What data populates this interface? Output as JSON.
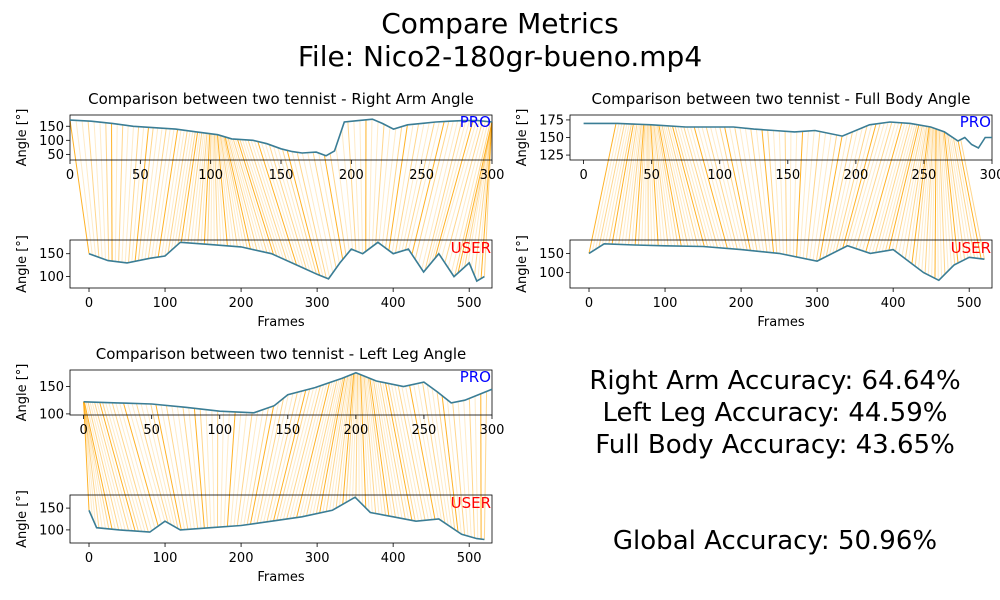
{
  "header": {
    "title_line1": "Compare Metrics",
    "title_line2": "File: Nico2-180gr-bueno.mp4"
  },
  "accuracy": {
    "right_arm": "Right Arm Accuracy: 64.64%",
    "left_leg": "Left Leg Accuracy: 44.59%",
    "full_body": "Full Body Accuracy: 43.65%",
    "global": "Global Accuracy: 50.96%"
  },
  "colors": {
    "series_line": "#3a7d95",
    "connector": "#ffa500",
    "pro_label": "#0000ff",
    "user_label": "#ff0000"
  },
  "chart_data": [
    {
      "type": "line",
      "title": "Comparison between two tennist - Right Arm Angle",
      "xlabel": "Frames",
      "ylabel": "Angle [°]",
      "pro": {
        "label": "PRO",
        "xlim": [
          0,
          300
        ],
        "ylim": [
          30,
          190
        ],
        "yticks": [
          50,
          100,
          150
        ],
        "xticks": [
          0,
          50,
          100,
          150,
          200,
          250,
          300
        ],
        "x": [
          0,
          15,
          30,
          45,
          60,
          75,
          90,
          105,
          115,
          130,
          140,
          150,
          158,
          165,
          175,
          182,
          188,
          195,
          205,
          215,
          222,
          230,
          240,
          250,
          260,
          270,
          280,
          290,
          300
        ],
        "y": [
          172,
          168,
          160,
          150,
          145,
          140,
          130,
          120,
          105,
          100,
          88,
          70,
          60,
          55,
          58,
          45,
          62,
          165,
          170,
          175,
          160,
          140,
          155,
          160,
          165,
          168,
          170,
          170,
          165
        ]
      },
      "user": {
        "label": "USER",
        "xlim": [
          -25,
          530
        ],
        "ylim": [
          75,
          180
        ],
        "yticks": [
          100,
          150
        ],
        "xticks": [
          0,
          100,
          200,
          300,
          400,
          500
        ],
        "x": [
          0,
          25,
          50,
          80,
          100,
          120,
          160,
          200,
          240,
          280,
          300,
          315,
          330,
          345,
          360,
          380,
          400,
          420,
          440,
          460,
          480,
          500,
          510,
          520
        ],
        "y": [
          150,
          135,
          130,
          140,
          145,
          175,
          170,
          165,
          150,
          120,
          105,
          95,
          130,
          160,
          150,
          175,
          150,
          160,
          110,
          150,
          100,
          130,
          90,
          100
        ]
      }
    },
    {
      "type": "line",
      "title": "Comparison between two tennist - Full Body Angle",
      "xlabel": "Frames",
      "ylabel": "Angle [°]",
      "pro": {
        "label": "PRO",
        "xlim": [
          -10,
          300
        ],
        "ylim": [
          118,
          182
        ],
        "yticks": [
          125,
          150,
          175
        ],
        "xticks": [
          0,
          50,
          100,
          150,
          200,
          250,
          300
        ],
        "x": [
          0,
          25,
          50,
          75,
          100,
          110,
          125,
          140,
          155,
          170,
          190,
          210,
          225,
          240,
          255,
          265,
          275,
          280,
          285,
          290,
          295,
          300
        ],
        "y": [
          170,
          170,
          168,
          165,
          165,
          165,
          162,
          160,
          158,
          160,
          152,
          168,
          172,
          170,
          165,
          158,
          145,
          150,
          140,
          135,
          150,
          150
        ]
      },
      "user": {
        "label": "USER",
        "xlim": [
          -25,
          530
        ],
        "ylim": [
          60,
          185
        ],
        "yticks": [
          100,
          150
        ],
        "xticks": [
          0,
          100,
          200,
          300,
          400,
          500
        ],
        "x": [
          0,
          20,
          60,
          100,
          150,
          200,
          250,
          300,
          340,
          370,
          400,
          420,
          440,
          460,
          480,
          500,
          520
        ],
        "y": [
          150,
          175,
          172,
          170,
          168,
          160,
          150,
          130,
          170,
          150,
          160,
          130,
          100,
          80,
          120,
          140,
          135
        ]
      }
    },
    {
      "type": "line",
      "title": "Comparison between two tennist - Left Leg Angle",
      "xlabel": "Frames",
      "ylabel": "Angle [°]",
      "pro": {
        "label": "PRO",
        "xlim": [
          -10,
          300
        ],
        "ylim": [
          98,
          180
        ],
        "yticks": [
          100,
          150
        ],
        "xticks": [
          0,
          50,
          100,
          150,
          200,
          250,
          300
        ],
        "x": [
          0,
          25,
          50,
          75,
          100,
          125,
          140,
          150,
          170,
          190,
          200,
          215,
          235,
          250,
          260,
          270,
          280,
          290,
          300
        ],
        "y": [
          122,
          120,
          118,
          112,
          105,
          102,
          115,
          135,
          148,
          165,
          175,
          160,
          150,
          158,
          140,
          120,
          125,
          135,
          145
        ]
      },
      "user": {
        "label": "USER",
        "xlim": [
          -25,
          530
        ],
        "ylim": [
          70,
          180
        ],
        "yticks": [
          100,
          150
        ],
        "xticks": [
          0,
          100,
          200,
          300,
          400,
          500
        ],
        "x": [
          0,
          10,
          40,
          80,
          100,
          120,
          160,
          200,
          240,
          280,
          320,
          350,
          370,
          400,
          430,
          460,
          490,
          510,
          520
        ],
        "y": [
          145,
          105,
          100,
          95,
          120,
          100,
          105,
          110,
          120,
          130,
          145,
          175,
          140,
          130,
          120,
          125,
          90,
          80,
          78
        ]
      }
    }
  ]
}
